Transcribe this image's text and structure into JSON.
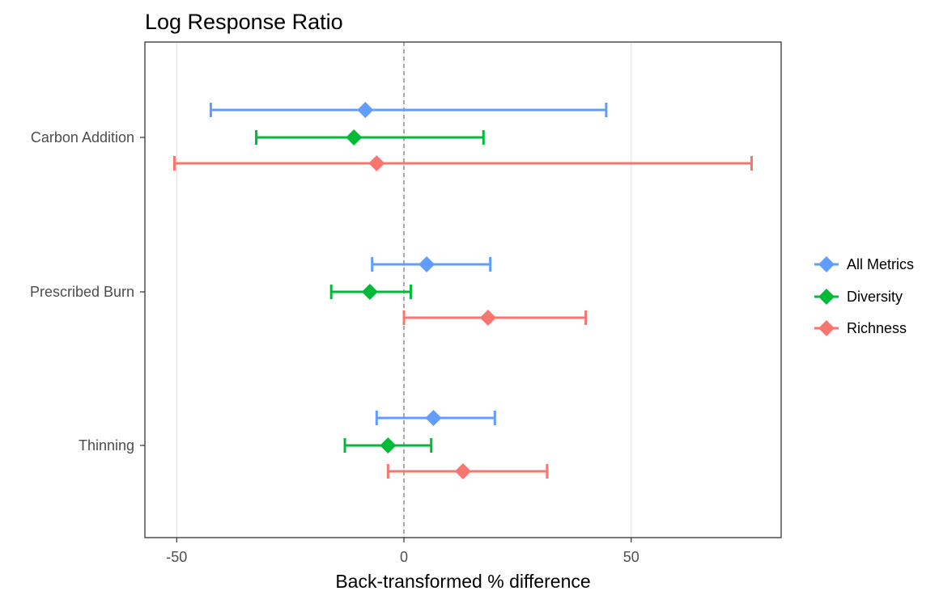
{
  "chart_data": {
    "type": "forest",
    "title": "Log Response Ratio",
    "xlabel": "Back-transformed % difference",
    "ylabel": "",
    "xlim": [
      -57,
      83
    ],
    "x_ticks": [
      -50,
      0,
      50
    ],
    "x_tick_labels": [
      "-50",
      "0",
      "50"
    ],
    "reference_line": 0,
    "categories": [
      "Carbon Addition",
      "Prescribed Burn",
      "Thinning"
    ],
    "legend_position": "right",
    "grid": "vertical major gridlines",
    "series": [
      {
        "name": "All Metrics",
        "color": "#619CFF",
        "points": [
          {
            "category": "Carbon Addition",
            "estimate": -8.5,
            "low": -42.5,
            "high": 44.5
          },
          {
            "category": "Prescribed Burn",
            "estimate": 5.0,
            "low": -7.0,
            "high": 19.0
          },
          {
            "category": "Thinning",
            "estimate": 6.5,
            "low": -6.0,
            "high": 20.0
          }
        ]
      },
      {
        "name": "Diversity",
        "color": "#00BA38",
        "points": [
          {
            "category": "Carbon Addition",
            "estimate": -11.0,
            "low": -32.5,
            "high": 17.5
          },
          {
            "category": "Prescribed Burn",
            "estimate": -7.5,
            "low": -16.0,
            "high": 1.5
          },
          {
            "category": "Thinning",
            "estimate": -3.5,
            "low": -13.0,
            "high": 6.0
          }
        ]
      },
      {
        "name": "Richness",
        "color": "#F8766D",
        "points": [
          {
            "category": "Carbon Addition",
            "estimate": -6.0,
            "low": -50.5,
            "high": 76.5
          },
          {
            "category": "Prescribed Burn",
            "estimate": 18.5,
            "low": 0.0,
            "high": 40.0
          },
          {
            "category": "Thinning",
            "estimate": 13.0,
            "low": -3.5,
            "high": 31.5
          }
        ]
      }
    ]
  }
}
